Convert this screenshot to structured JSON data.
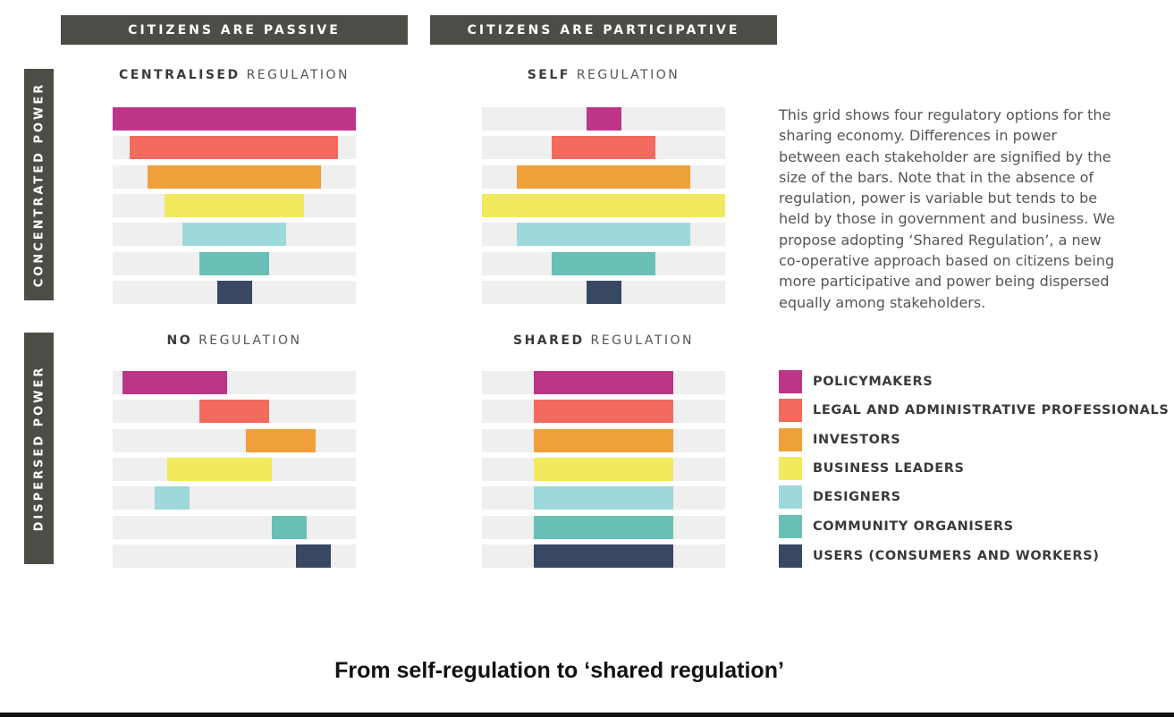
{
  "headers": {
    "col_passive": "CITIZENS ARE PASSIVE",
    "col_participative": "CITIZENS ARE PARTICIPATIVE",
    "row_concentrated": "CONCENTRATED POWER",
    "row_dispersed": "DISPERSED POWER"
  },
  "description": "This grid shows four regulatory options for the sharing economy. Differences in power between each stakeholder are signified by the size of the bars. Note that in the absence of regulation, power is variable but tends to be held by those in government and business. We propose adopting ‘Shared Regulation’, a new co-operative approach based on citizens being more participative and power being dispersed equally among stakeholders.",
  "caption": "From self-regulation to ‘shared regulation’",
  "legend": [
    {
      "label": "POLICYMAKERS",
      "color": "#bd3589"
    },
    {
      "label": "LEGAL AND ADMINISTRATIVE PROFESSIONALS",
      "color": "#f26b5e"
    },
    {
      "label": "INVESTORS",
      "color": "#f0a03a"
    },
    {
      "label": "BUSINESS LEADERS",
      "color": "#f0ea5c"
    },
    {
      "label": "DESIGNERS",
      "color": "#9dd9db"
    },
    {
      "label": "COMMUNITY ORGANISERS",
      "color": "#69bfb5"
    },
    {
      "label": "USERS (CONSUMERS AND WORKERS)",
      "color": "#384863"
    }
  ],
  "chart_data": [
    {
      "type": "bar",
      "title_bold": "CENTRALISED",
      "title_light": "REGULATION",
      "bars": [
        {
          "start": 0.0,
          "end": 1.0
        },
        {
          "start": 0.071,
          "end": 0.929
        },
        {
          "start": 0.143,
          "end": 0.857
        },
        {
          "start": 0.214,
          "end": 0.786
        },
        {
          "start": 0.286,
          "end": 0.714
        },
        {
          "start": 0.357,
          "end": 0.643
        },
        {
          "start": 0.429,
          "end": 0.571
        }
      ]
    },
    {
      "type": "bar",
      "title_bold": "SELF",
      "title_light": "REGULATION",
      "bars": [
        {
          "start": 0.429,
          "end": 0.571
        },
        {
          "start": 0.286,
          "end": 0.714
        },
        {
          "start": 0.143,
          "end": 0.857
        },
        {
          "start": 0.0,
          "end": 1.0
        },
        {
          "start": 0.143,
          "end": 0.857
        },
        {
          "start": 0.286,
          "end": 0.714
        },
        {
          "start": 0.429,
          "end": 0.571
        }
      ]
    },
    {
      "type": "bar",
      "title_bold": "NO",
      "title_light": "REGULATION",
      "bars": [
        {
          "start": 0.04,
          "end": 0.47
        },
        {
          "start": 0.357,
          "end": 0.643
        },
        {
          "start": 0.548,
          "end": 0.835
        },
        {
          "start": 0.224,
          "end": 0.654
        },
        {
          "start": 0.173,
          "end": 0.316
        },
        {
          "start": 0.654,
          "end": 0.797
        },
        {
          "start": 0.752,
          "end": 0.895
        }
      ]
    },
    {
      "type": "bar",
      "title_bold": "SHARED",
      "title_light": "REGULATION",
      "bars": [
        {
          "start": 0.214,
          "end": 0.786
        },
        {
          "start": 0.214,
          "end": 0.786
        },
        {
          "start": 0.214,
          "end": 0.786
        },
        {
          "start": 0.214,
          "end": 0.786
        },
        {
          "start": 0.214,
          "end": 0.786
        },
        {
          "start": 0.214,
          "end": 0.786
        },
        {
          "start": 0.214,
          "end": 0.786
        }
      ]
    }
  ]
}
